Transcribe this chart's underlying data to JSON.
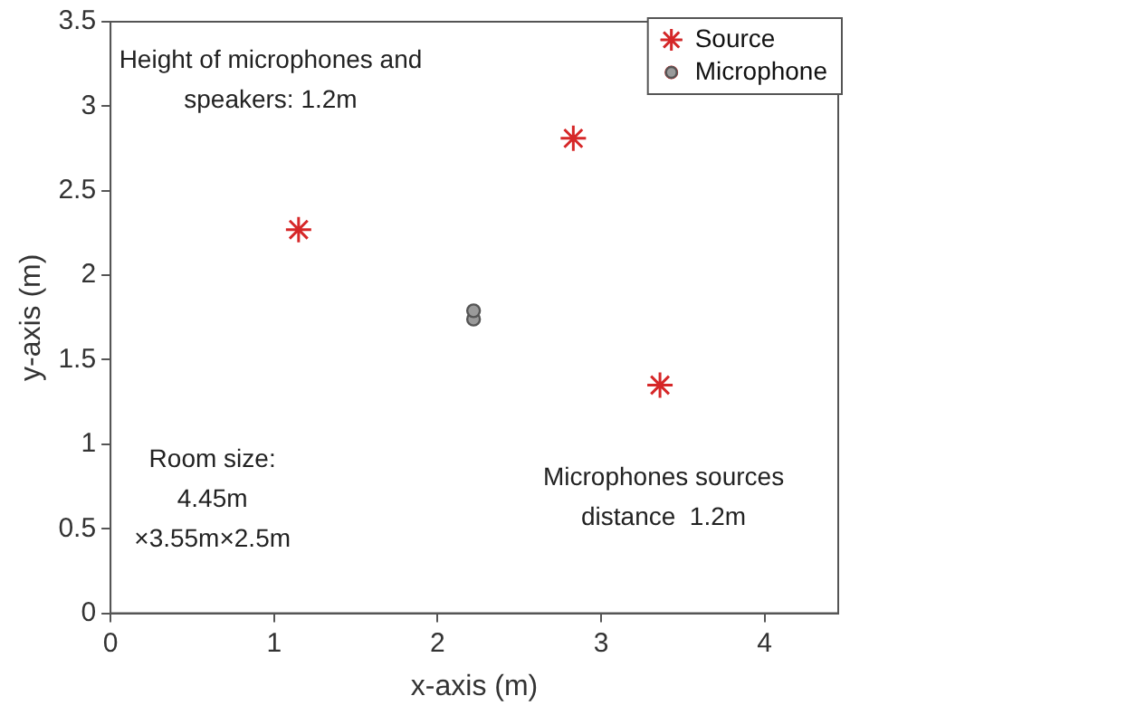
{
  "chart_data": {
    "type": "scatter",
    "xlabel": "x-axis (m)",
    "ylabel": "y-axis (m)",
    "xlim": [
      0,
      4.45
    ],
    "xticks": [
      0,
      1,
      2,
      3,
      4
    ],
    "ylim": [
      0,
      3.5
    ],
    "yticks": [
      0,
      0.5,
      1,
      1.5,
      2,
      2.5,
      3,
      3.5
    ],
    "grid": false,
    "legend": "top right",
    "series": [
      {
        "name": "Source",
        "color": "#d62728",
        "marker": "cross",
        "x": [
          1.15,
          2.83,
          3.36
        ],
        "values": [
          2.27,
          2.81,
          1.35
        ]
      },
      {
        "name": "Microphone",
        "color": "#555555",
        "marker": "circle",
        "x": [
          2.22,
          2.22
        ],
        "values": [
          1.74,
          1.79
        ]
      }
    ],
    "annotations": [
      "Height of microphones and speakers: 1.2m",
      "Room size: 4.45m ×3.55m×2.5m",
      "Microphones sources distance  1.2m"
    ]
  }
}
